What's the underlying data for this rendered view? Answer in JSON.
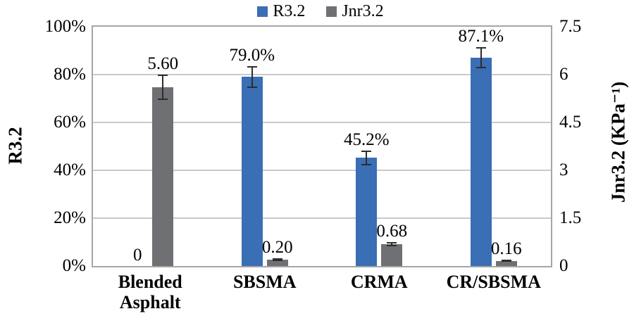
{
  "chart_data": {
    "type": "bar",
    "title": "",
    "categories": [
      "Blended Asphalt",
      "SBSMA",
      "CRMA",
      "CR/SBSMA"
    ],
    "series": [
      {
        "name": "R3.2",
        "axis": "left",
        "color": "#3A6EB5",
        "values": [
          0,
          79.0,
          45.2,
          87.1
        ],
        "value_labels": [
          "0",
          "79.0%",
          "45.2%",
          "87.1%"
        ],
        "errors": [
          0,
          4.5,
          3.0,
          4.5
        ]
      },
      {
        "name": "Jnr3.2",
        "axis": "right",
        "color": "#6E7073",
        "values": [
          5.6,
          0.2,
          0.68,
          0.16
        ],
        "value_labels": [
          "5.60",
          "0.20",
          "0.68",
          "0.16"
        ],
        "errors": [
          0.4,
          0.04,
          0.07,
          0.03
        ]
      }
    ],
    "left_axis": {
      "title": "R3.2",
      "min": 0,
      "max": 100,
      "ticks": [
        "0%",
        "20%",
        "40%",
        "60%",
        "80%",
        "100%"
      ]
    },
    "right_axis": {
      "title": "Jnr3.2 (KPa⁻¹)",
      "min": 0,
      "max": 7.5,
      "ticks": [
        "0",
        "1.5",
        "3",
        "4.5",
        "6",
        "7.5"
      ]
    },
    "legend": {
      "position": "top",
      "entries": [
        "R3.2",
        "Jnr3.2"
      ]
    },
    "grid": true,
    "colors": {
      "plot_border": "#A6A6A6",
      "gridline": "#C9C9C9",
      "error_bar": "#2d2d2d",
      "text": "#000000"
    }
  }
}
